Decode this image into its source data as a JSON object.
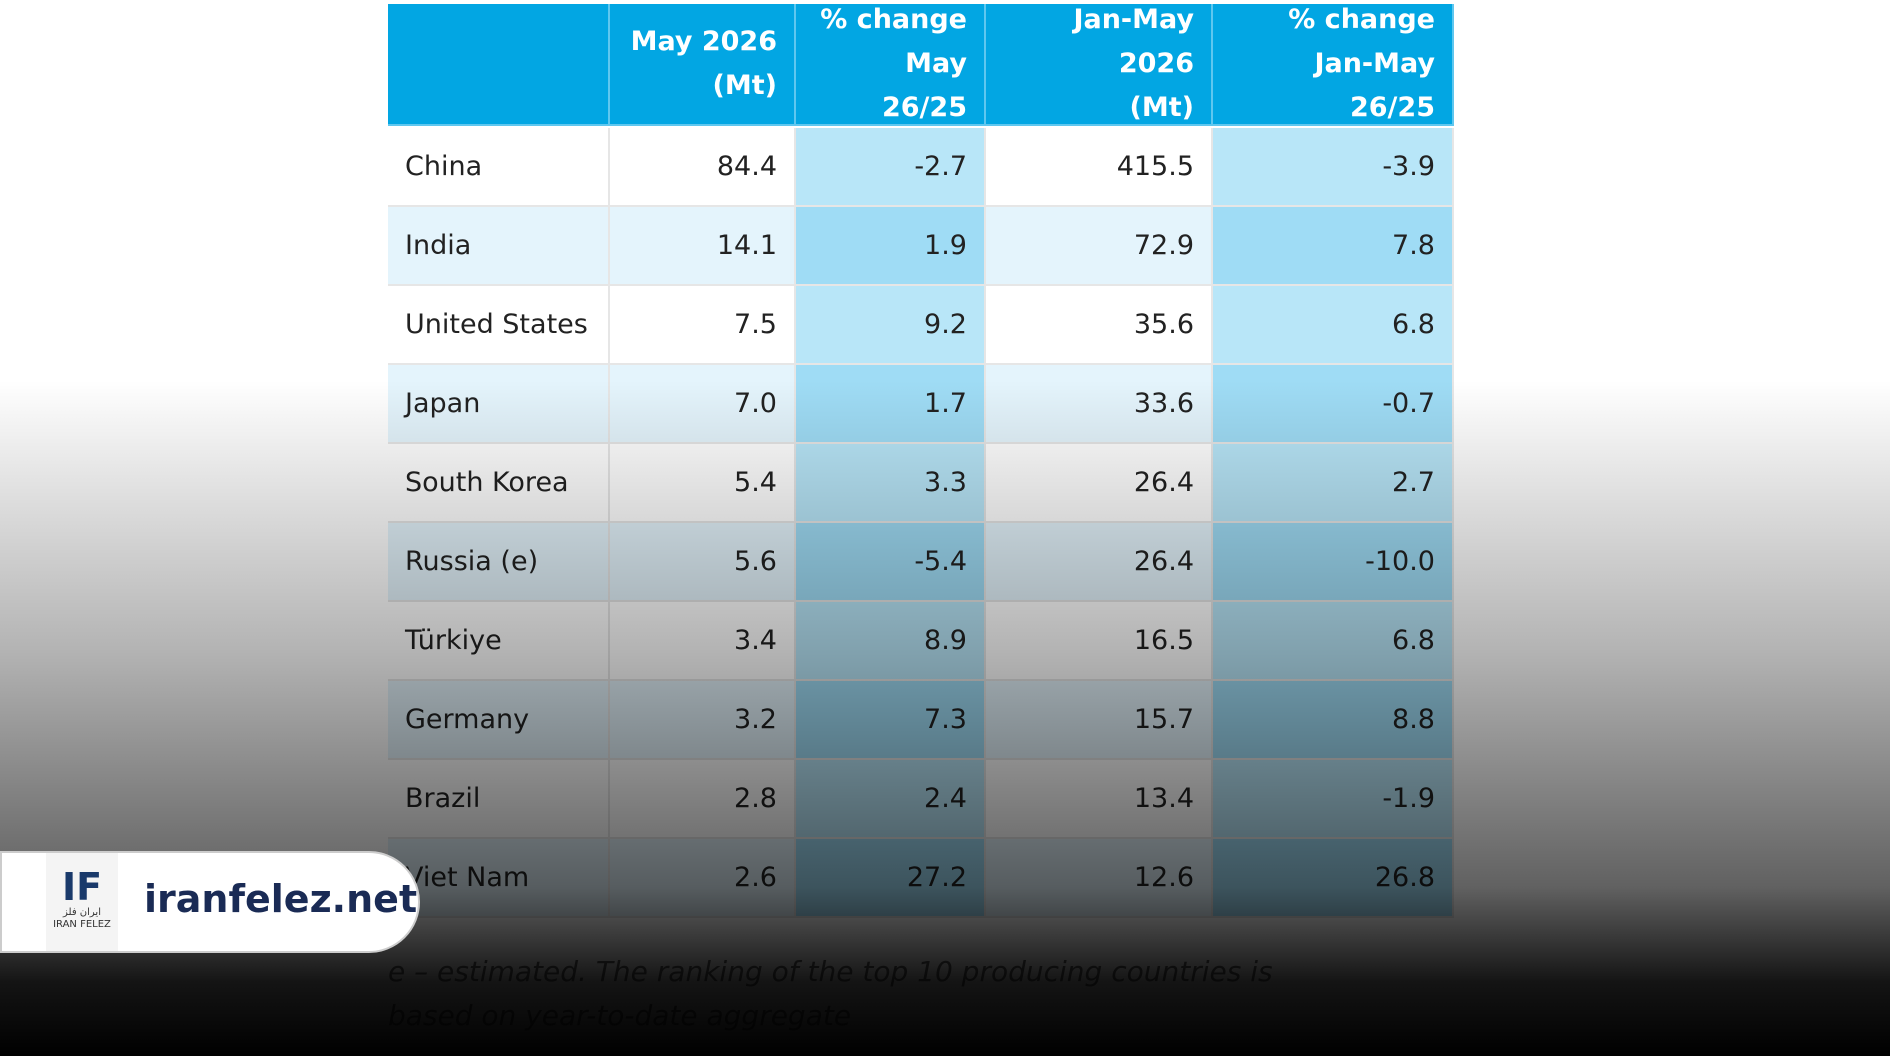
{
  "table": {
    "header": [
      [
        "May 2026",
        "(Mt)"
      ],
      [
        "% change",
        "May 26/25"
      ],
      [
        "Jan-May 2026",
        "(Mt)"
      ],
      [
        "% change",
        "Jan-May 26/25"
      ]
    ],
    "rows": [
      [
        "China",
        "84.4",
        "-2.7",
        "415.5",
        "-3.9"
      ],
      [
        "India",
        "14.1",
        "1.9",
        "72.9",
        "7.8"
      ],
      [
        "United States",
        "7.5",
        "9.2",
        "35.6",
        "6.8"
      ],
      [
        "Japan",
        "7.0",
        "1.7",
        "33.6",
        "-0.7"
      ],
      [
        "South Korea",
        "5.4",
        "3.3",
        "26.4",
        "2.7"
      ],
      [
        "Russia (e)",
        "5.6",
        "-5.4",
        "26.4",
        "-10.0"
      ],
      [
        "Türkiye",
        "3.4",
        "8.9",
        "16.5",
        "6.8"
      ],
      [
        "Germany",
        "3.2",
        "7.3",
        "15.7",
        "8.8"
      ],
      [
        "Brazil",
        "2.8",
        "2.4",
        "13.4",
        "-1.9"
      ],
      [
        "Viet Nam",
        "2.6",
        "27.2",
        "12.6",
        "26.8"
      ]
    ],
    "footnote": "e – estimated. The ranking of the top 10 producing countries is based on year-to-date aggregate"
  },
  "badge": {
    "logo_mark": "IF",
    "logo_fa": "ایران فلز",
    "logo_en": "IRAN FELEZ",
    "site": "iranfelez.net"
  }
}
